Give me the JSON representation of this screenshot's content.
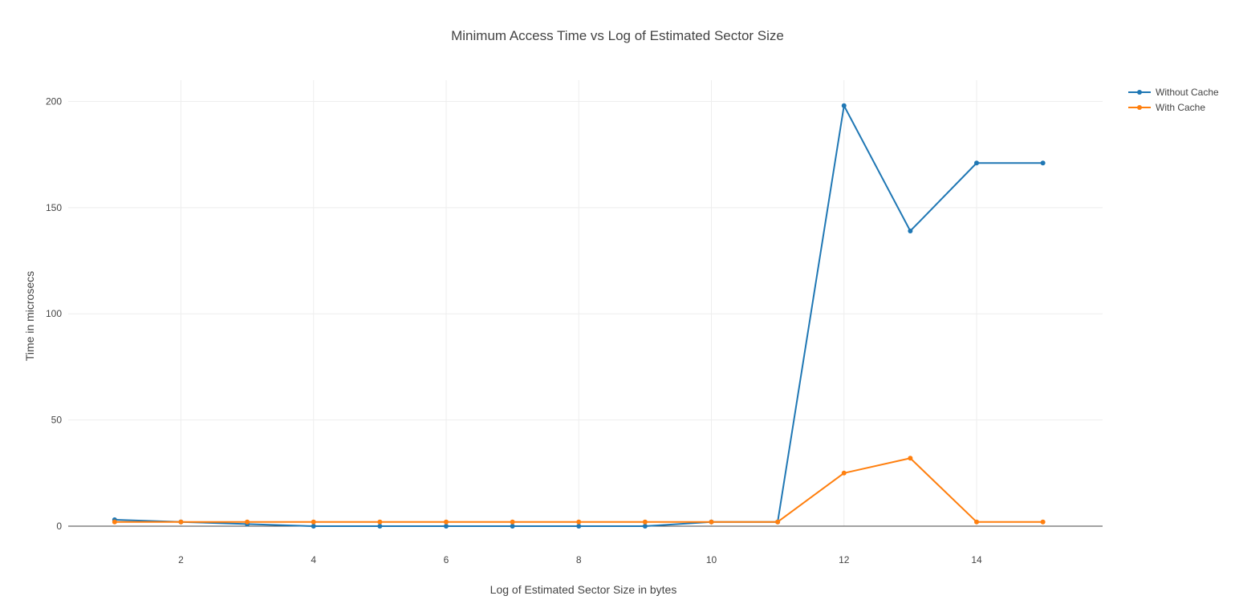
{
  "chart_data": {
    "type": "line",
    "title": "Minimum Access Time vs Log of Estimated Sector Size",
    "xlabel": "Log of Estimated Sector Size in bytes",
    "ylabel": "Time in microsecs",
    "xlim": [
      0.3,
      15.9
    ],
    "ylim": [
      0,
      210
    ],
    "x_ticks": [
      2,
      4,
      6,
      8,
      10,
      12,
      14
    ],
    "y_ticks": [
      0,
      50,
      100,
      150,
      200
    ],
    "grid": true,
    "legend_position": "top-right",
    "x": [
      1,
      2,
      3,
      4,
      5,
      6,
      7,
      8,
      9,
      10,
      11,
      12,
      13,
      14,
      15
    ],
    "series": [
      {
        "name": "Without Cache",
        "color": "#1f77b4",
        "values": [
          3,
          2,
          1,
          0,
          0,
          0,
          0,
          0,
          0,
          2,
          2,
          198,
          139,
          171,
          171
        ]
      },
      {
        "name": "With Cache",
        "color": "#ff7f0e",
        "values": [
          2,
          2,
          2,
          2,
          2,
          2,
          2,
          2,
          2,
          2,
          2,
          25,
          32,
          2,
          2
        ]
      }
    ]
  }
}
